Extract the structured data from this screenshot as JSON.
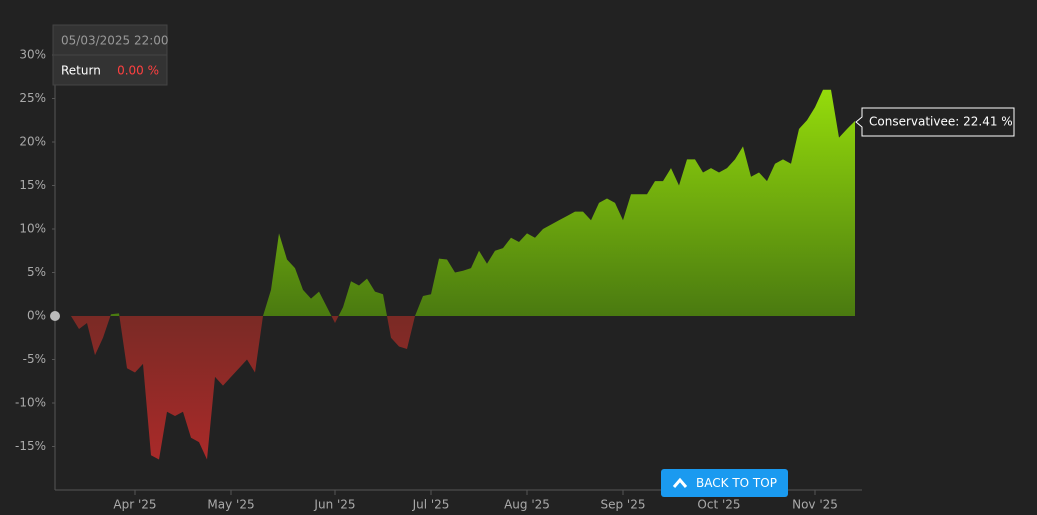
{
  "chart_data": {
    "type": "area",
    "series": [
      {
        "name": "Conservativee",
        "color": "#a6f20a",
        "negative_color": "#b32a2a",
        "values": [
          0,
          0,
          0,
          -1.5,
          -0.8,
          -4.5,
          -2.5,
          0.2,
          0.3,
          -6,
          -6.5,
          -5.5,
          -16,
          -16.5,
          -11,
          -11.5,
          -11,
          -14,
          -14.5,
          -16.5,
          -7,
          -8,
          -7,
          -6,
          -5,
          -6.5,
          0,
          3,
          9.5,
          6.5,
          5.5,
          3,
          2,
          2.8,
          1,
          -0.8,
          1,
          4,
          3.5,
          4.3,
          2.8,
          2.5,
          -2.5,
          -3.5,
          -3.8,
          0,
          2.3,
          2.5,
          6.6,
          6.5,
          5,
          5.2,
          5.5,
          7.5,
          6,
          7.5,
          7.8,
          9,
          8.5,
          9.5,
          9,
          10,
          10.5,
          11,
          11.5,
          12,
          12,
          11,
          13,
          13.5,
          13,
          11,
          14,
          14,
          14,
          15.5,
          15.5,
          17,
          15,
          18,
          18,
          16.5,
          17,
          16.5,
          17,
          18,
          19.5,
          16,
          16.5,
          15.5,
          17.5,
          18,
          17.5,
          21.5,
          22.5,
          24,
          26,
          26,
          20.5,
          21.5,
          22.41
        ]
      }
    ],
    "categories": [
      null,
      null,
      null,
      null,
      null,
      null,
      null,
      null,
      null,
      null,
      "Apr '25",
      null,
      null,
      null,
      null,
      null,
      null,
      null,
      null,
      null,
      null,
      null,
      "May '25",
      null,
      null,
      null,
      null,
      null,
      null,
      null,
      null,
      null,
      null,
      null,
      null,
      "Jun '25",
      null,
      null,
      null,
      null,
      null,
      null,
      null,
      null,
      null,
      null,
      null,
      "Jul '25",
      null,
      null,
      null,
      null,
      null,
      null,
      null,
      null,
      null,
      null,
      null,
      "Aug '25",
      null,
      null,
      null,
      null,
      null,
      null,
      null,
      null,
      null,
      null,
      null,
      "Sep '25",
      null,
      null,
      null,
      null,
      null,
      null,
      null,
      null,
      null,
      null,
      null,
      "Oct '25",
      null,
      null,
      null,
      null,
      null,
      null,
      null,
      null,
      null,
      null,
      null,
      "Nov '25",
      null,
      null,
      null,
      null,
      null
    ],
    "ylim": [
      -20,
      32
    ],
    "yticks": [
      {
        "value": -15,
        "label": "-15%"
      },
      {
        "value": -10,
        "label": "-10%"
      },
      {
        "value": -5,
        "label": "-5%"
      },
      {
        "value": 0,
        "label": "0%"
      },
      {
        "value": 5,
        "label": "5%"
      },
      {
        "value": 10,
        "label": "10%"
      },
      {
        "value": 15,
        "label": "15%"
      },
      {
        "value": 20,
        "label": "20%"
      },
      {
        "value": 25,
        "label": "25%"
      },
      {
        "value": 30,
        "label": "30%"
      }
    ],
    "hover_tooltip": {
      "date": "05/03/2025 22:00",
      "label": "Return",
      "value": "0.00 %"
    },
    "end_tooltip": "Conservativee: 22.41 %"
  },
  "back_to_top": "BACK TO TOP"
}
